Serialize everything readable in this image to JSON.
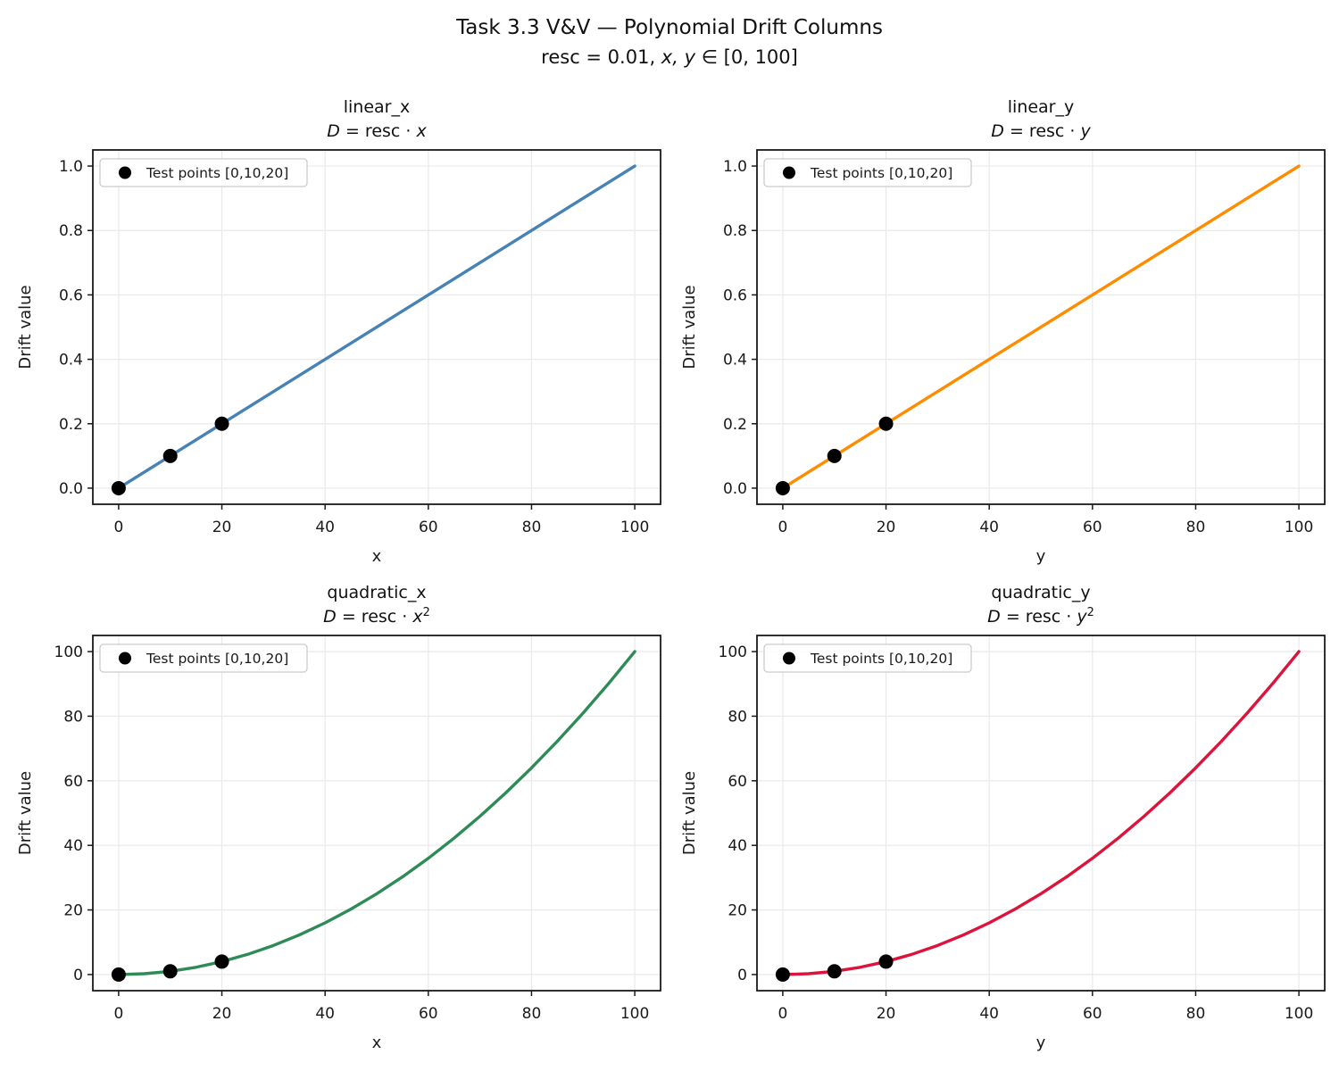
{
  "figure": {
    "suptitle": "Task 3.3 V&V — Polynomial Drift Columns",
    "subtitle": {
      "pre": "resc = 0.01, ",
      "vars": "x, y",
      "post": " ∈ [0, 100]"
    }
  },
  "style": {
    "background": "#ffffff",
    "grid_color": "#e9e9e9",
    "spine_color": "#1a1a1a",
    "text_color": "#1a1a1a",
    "marker_color": "#000000",
    "legend_border": "#cccccc"
  },
  "chart_data": [
    {
      "id": "linear_x",
      "type": "line",
      "title": "linear_x",
      "formula": {
        "lhs": "D",
        "rel": " = resc · ",
        "var": "x",
        "sup": ""
      },
      "color": "#4682B4",
      "xlabel": "x",
      "ylabel": "Drift value",
      "xlim": [
        -5,
        105
      ],
      "ylim": [
        -0.05,
        1.05
      ],
      "xticks": [
        0,
        20,
        40,
        60,
        80,
        100
      ],
      "xtick_labels": [
        "0",
        "20",
        "40",
        "60",
        "80",
        "100"
      ],
      "yticks": [
        0.0,
        0.2,
        0.4,
        0.6,
        0.8,
        1.0
      ],
      "ytick_labels": [
        "0.0",
        "0.2",
        "0.4",
        "0.6",
        "0.8",
        "1.0"
      ],
      "grid": true,
      "legend_loc": "upper left",
      "legend_label": "Test points [0,10,20]",
      "line": {
        "x": [
          0,
          100
        ],
        "y": [
          0,
          1
        ]
      },
      "test_points": [
        [
          0,
          0.0
        ],
        [
          10,
          0.1
        ],
        [
          20,
          0.2
        ]
      ]
    },
    {
      "id": "linear_y",
      "type": "line",
      "title": "linear_y",
      "formula": {
        "lhs": "D",
        "rel": " = resc · ",
        "var": "y",
        "sup": ""
      },
      "color": "#FF8C00",
      "xlabel": "y",
      "ylabel": "Drift value",
      "xlim": [
        -5,
        105
      ],
      "ylim": [
        -0.05,
        1.05
      ],
      "xticks": [
        0,
        20,
        40,
        60,
        80,
        100
      ],
      "xtick_labels": [
        "0",
        "20",
        "40",
        "60",
        "80",
        "100"
      ],
      "yticks": [
        0.0,
        0.2,
        0.4,
        0.6,
        0.8,
        1.0
      ],
      "ytick_labels": [
        "0.0",
        "0.2",
        "0.4",
        "0.6",
        "0.8",
        "1.0"
      ],
      "grid": true,
      "legend_loc": "upper left",
      "legend_label": "Test points [0,10,20]",
      "line": {
        "x": [
          0,
          100
        ],
        "y": [
          0,
          1
        ]
      },
      "test_points": [
        [
          0,
          0.0
        ],
        [
          10,
          0.1
        ],
        [
          20,
          0.2
        ]
      ]
    },
    {
      "id": "quadratic_x",
      "type": "line",
      "title": "quadratic_x",
      "formula": {
        "lhs": "D",
        "rel": " = resc · ",
        "var": "x",
        "sup": "2"
      },
      "color": "#2E8B57",
      "xlabel": "x",
      "ylabel": "Drift value",
      "xlim": [
        -5,
        105
      ],
      "ylim": [
        -5,
        105
      ],
      "xticks": [
        0,
        20,
        40,
        60,
        80,
        100
      ],
      "xtick_labels": [
        "0",
        "20",
        "40",
        "60",
        "80",
        "100"
      ],
      "yticks": [
        0,
        20,
        40,
        60,
        80,
        100
      ],
      "ytick_labels": [
        "0",
        "20",
        "40",
        "60",
        "80",
        "100"
      ],
      "grid": true,
      "legend_loc": "upper left",
      "legend_label": "Test points [0,10,20]",
      "line": {
        "x": [
          0,
          5,
          10,
          15,
          20,
          25,
          30,
          35,
          40,
          45,
          50,
          55,
          60,
          65,
          70,
          75,
          80,
          85,
          90,
          95,
          100
        ],
        "y": [
          0,
          0.25,
          1,
          2.25,
          4,
          6.25,
          9,
          12.25,
          16,
          20.25,
          25,
          30.25,
          36,
          42.25,
          49,
          56.25,
          64,
          72.25,
          81,
          90.25,
          100
        ]
      },
      "test_points": [
        [
          0,
          0
        ],
        [
          10,
          1
        ],
        [
          20,
          4
        ]
      ]
    },
    {
      "id": "quadratic_y",
      "type": "line",
      "title": "quadratic_y",
      "formula": {
        "lhs": "D",
        "rel": " = resc · ",
        "var": "y",
        "sup": "2"
      },
      "color": "#DC143C",
      "xlabel": "y",
      "ylabel": "Drift value",
      "xlim": [
        -5,
        105
      ],
      "ylim": [
        -5,
        105
      ],
      "xticks": [
        0,
        20,
        40,
        60,
        80,
        100
      ],
      "xtick_labels": [
        "0",
        "20",
        "40",
        "60",
        "80",
        "100"
      ],
      "yticks": [
        0,
        20,
        40,
        60,
        80,
        100
      ],
      "ytick_labels": [
        "0",
        "20",
        "40",
        "60",
        "80",
        "100"
      ],
      "grid": true,
      "legend_loc": "upper left",
      "legend_label": "Test points [0,10,20]",
      "line": {
        "x": [
          0,
          5,
          10,
          15,
          20,
          25,
          30,
          35,
          40,
          45,
          50,
          55,
          60,
          65,
          70,
          75,
          80,
          85,
          90,
          95,
          100
        ],
        "y": [
          0,
          0.25,
          1,
          2.25,
          4,
          6.25,
          9,
          12.25,
          16,
          20.25,
          25,
          30.25,
          36,
          42.25,
          49,
          56.25,
          64,
          72.25,
          81,
          90.25,
          100
        ]
      },
      "test_points": [
        [
          0,
          0
        ],
        [
          10,
          1
        ],
        [
          20,
          4
        ]
      ]
    }
  ]
}
